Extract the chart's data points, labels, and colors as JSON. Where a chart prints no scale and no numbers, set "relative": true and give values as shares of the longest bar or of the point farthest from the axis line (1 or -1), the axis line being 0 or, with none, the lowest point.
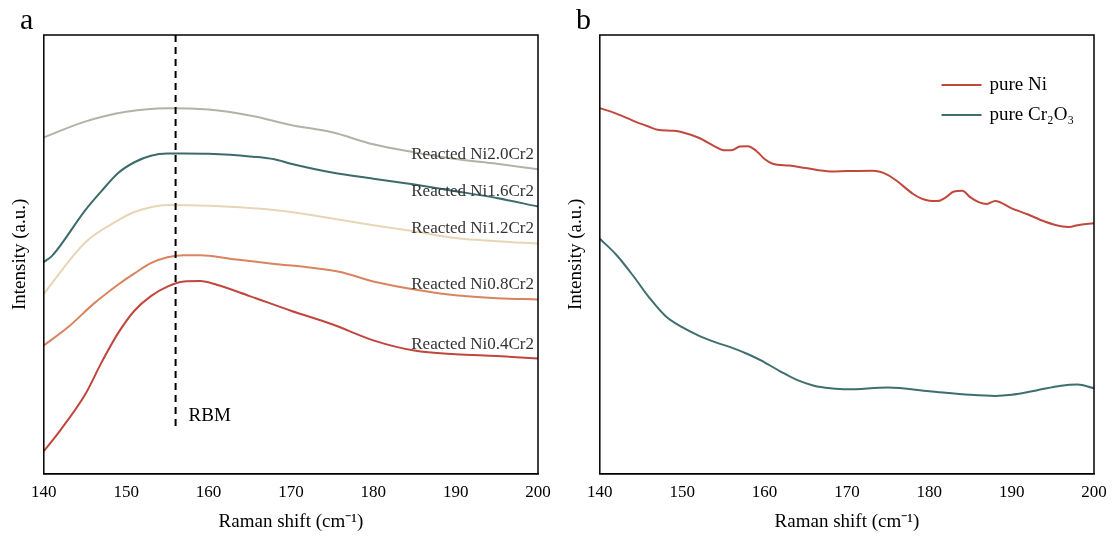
{
  "chart_data": [
    {
      "type": "line",
      "title": "a",
      "xlabel": "Raman shift (cm⁻¹)",
      "ylabel": "Intensity (a.u.)",
      "relative": true,
      "xlim": [
        140,
        200
      ],
      "xticks": [
        140,
        150,
        160,
        170,
        180,
        190,
        200
      ],
      "legend": false,
      "grid": false,
      "line_style": "solid",
      "marker": "none",
      "ref_lines": [
        {
          "axis": "x",
          "value": 156,
          "label": "RBM",
          "line_style": "dashed",
          "color": "#000000"
        }
      ],
      "series": [
        {
          "name": "Reacted Ni2.0Cr2",
          "color": "#b0b3a6",
          "x": [
            140,
            145,
            150,
            155,
            160,
            165,
            170,
            175,
            180,
            185,
            190,
            195,
            200
          ],
          "values": [
            0.92,
            0.963,
            0.99,
            1.0,
            0.996,
            0.98,
            0.954,
            0.934,
            0.901,
            0.879,
            0.861,
            0.848,
            0.833
          ]
        },
        {
          "name": "Reacted Ni1.6Cr2",
          "color": "#3d6b6b",
          "x": [
            140,
            141,
            145,
            147,
            149,
            151,
            153,
            155,
            157,
            160,
            165,
            168,
            170,
            175,
            180,
            185,
            190,
            195,
            200
          ],
          "values": [
            0.579,
            0.596,
            0.72,
            0.773,
            0.822,
            0.852,
            0.87,
            0.876,
            0.876,
            0.875,
            0.868,
            0.86,
            0.848,
            0.824,
            0.807,
            0.791,
            0.773,
            0.754,
            0.731
          ]
        },
        {
          "name": "Reacted Ni1.2Cr2",
          "color": "#e8d5b7",
          "x": [
            140,
            145,
            149,
            151,
            153,
            155,
            160,
            165,
            170,
            175,
            180,
            185,
            190,
            195,
            200
          ],
          "values": [
            0.492,
            0.632,
            0.693,
            0.716,
            0.729,
            0.735,
            0.733,
            0.727,
            0.716,
            0.698,
            0.68,
            0.663,
            0.645,
            0.636,
            0.63
          ]
        },
        {
          "name": "Reacted Ni0.8Cr2",
          "color": "#d9845e",
          "x": [
            140,
            143,
            146,
            149,
            151,
            153,
            155,
            157,
            159,
            163,
            168,
            172,
            176,
            180,
            185,
            190,
            195,
            200
          ],
          "values": [
            0.351,
            0.402,
            0.464,
            0.517,
            0.548,
            0.576,
            0.592,
            0.598,
            0.598,
            0.587,
            0.574,
            0.565,
            0.552,
            0.526,
            0.504,
            0.488,
            0.48,
            0.477
          ]
        },
        {
          "name": "Reacted Ni0.4Cr2",
          "color": "#c0463e",
          "x": [
            140,
            142,
            145,
            147,
            149,
            151,
            153,
            155,
            157,
            159,
            161,
            165,
            170,
            175,
            180,
            185,
            190,
            195,
            200
          ],
          "values": [
            0.062,
            0.119,
            0.216,
            0.304,
            0.384,
            0.446,
            0.486,
            0.512,
            0.526,
            0.527,
            0.517,
            0.486,
            0.446,
            0.409,
            0.365,
            0.337,
            0.327,
            0.322,
            0.315
          ]
        }
      ]
    },
    {
      "type": "line",
      "title": "b",
      "xlabel": "Raman shift (cm⁻¹)",
      "ylabel": "Intensity (a.u.)",
      "relative": true,
      "xlim": [
        140,
        200
      ],
      "xticks": [
        140,
        150,
        160,
        170,
        180,
        190,
        200
      ],
      "legend": "top right",
      "grid": false,
      "line_style": "solid",
      "marker": "none",
      "series": [
        {
          "name": "pure Ni",
          "color": "#c0483d",
          "x": [
            140,
            142,
            144,
            146,
            147,
            149,
            150,
            152,
            154,
            155,
            156,
            157,
            158,
            159,
            160,
            161,
            163,
            165,
            168,
            170,
            173,
            174,
            175,
            176,
            178,
            179,
            180,
            181,
            182,
            183,
            184,
            185,
            186,
            187,
            188,
            190,
            192,
            194,
            196,
            197,
            198,
            200
          ],
          "values": [
            1.0,
            0.985,
            0.966,
            0.949,
            0.941,
            0.938,
            0.934,
            0.919,
            0.895,
            0.885,
            0.885,
            0.895,
            0.896,
            0.883,
            0.861,
            0.848,
            0.843,
            0.836,
            0.827,
            0.828,
            0.829,
            0.826,
            0.817,
            0.802,
            0.766,
            0.753,
            0.747,
            0.746,
            0.756,
            0.772,
            0.774,
            0.756,
            0.743,
            0.738,
            0.746,
            0.726,
            0.709,
            0.69,
            0.677,
            0.675,
            0.68,
            0.685
          ]
        },
        {
          "name": "pure Cr₂O₃",
          "color": "#3e6e6e",
          "x": [
            140,
            142,
            144,
            146,
            148,
            150,
            152,
            154,
            156,
            158,
            160,
            162,
            164,
            166,
            168,
            170,
            175,
            180,
            185,
            188,
            190,
            193,
            196,
            198,
            200
          ],
          "values": [
            0.643,
            0.599,
            0.543,
            0.482,
            0.431,
            0.401,
            0.378,
            0.36,
            0.345,
            0.327,
            0.305,
            0.279,
            0.256,
            0.241,
            0.234,
            0.231,
            0.236,
            0.226,
            0.216,
            0.213,
            0.216,
            0.228,
            0.241,
            0.244,
            0.234
          ]
        }
      ]
    }
  ]
}
